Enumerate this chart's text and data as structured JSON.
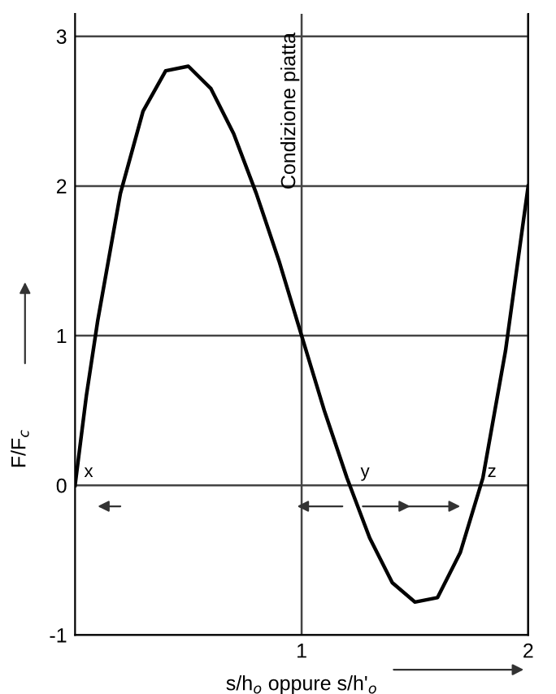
{
  "chart_data": {
    "type": "line",
    "xlabel": "s/h$_{o}$ oppure s/h'$_{o}$",
    "ylabel": "F/F$_{c}$",
    "series": [
      {
        "color": "#000000",
        "x": [
          0,
          0.05,
          0.1,
          0.2,
          0.3,
          0.4,
          0.5,
          0.6,
          0.7,
          0.8,
          0.9,
          1.0,
          1.1,
          1.2,
          1.3,
          1.4,
          1.5,
          1.6,
          1.7,
          1.8,
          1.9,
          1.95,
          2.0
        ],
        "values": [
          0,
          0.6,
          1.1,
          1.95,
          2.5,
          2.77,
          2.8,
          2.65,
          2.35,
          1.95,
          1.5,
          1.0,
          0.5,
          0.05,
          -0.35,
          -0.65,
          -0.78,
          -0.75,
          -0.45,
          0.05,
          0.9,
          1.45,
          2.0
        ]
      }
    ],
    "annotations": [
      "Condizione piatta",
      {
        "text": "x",
        "x": 0,
        "y": 0
      },
      {
        "text": "y",
        "x": 1.22,
        "y": 0
      },
      {
        "text": "z",
        "x": 1.78,
        "y": 0
      }
    ],
    "xlim": [
      0,
      2
    ],
    "ylim": [
      -1,
      3.15
    ],
    "xticks": [
      1,
      2
    ],
    "yticks": [
      -1,
      0,
      1,
      2,
      3
    ],
    "grid": true,
    "marker": "none",
    "line_style": "solid"
  }
}
